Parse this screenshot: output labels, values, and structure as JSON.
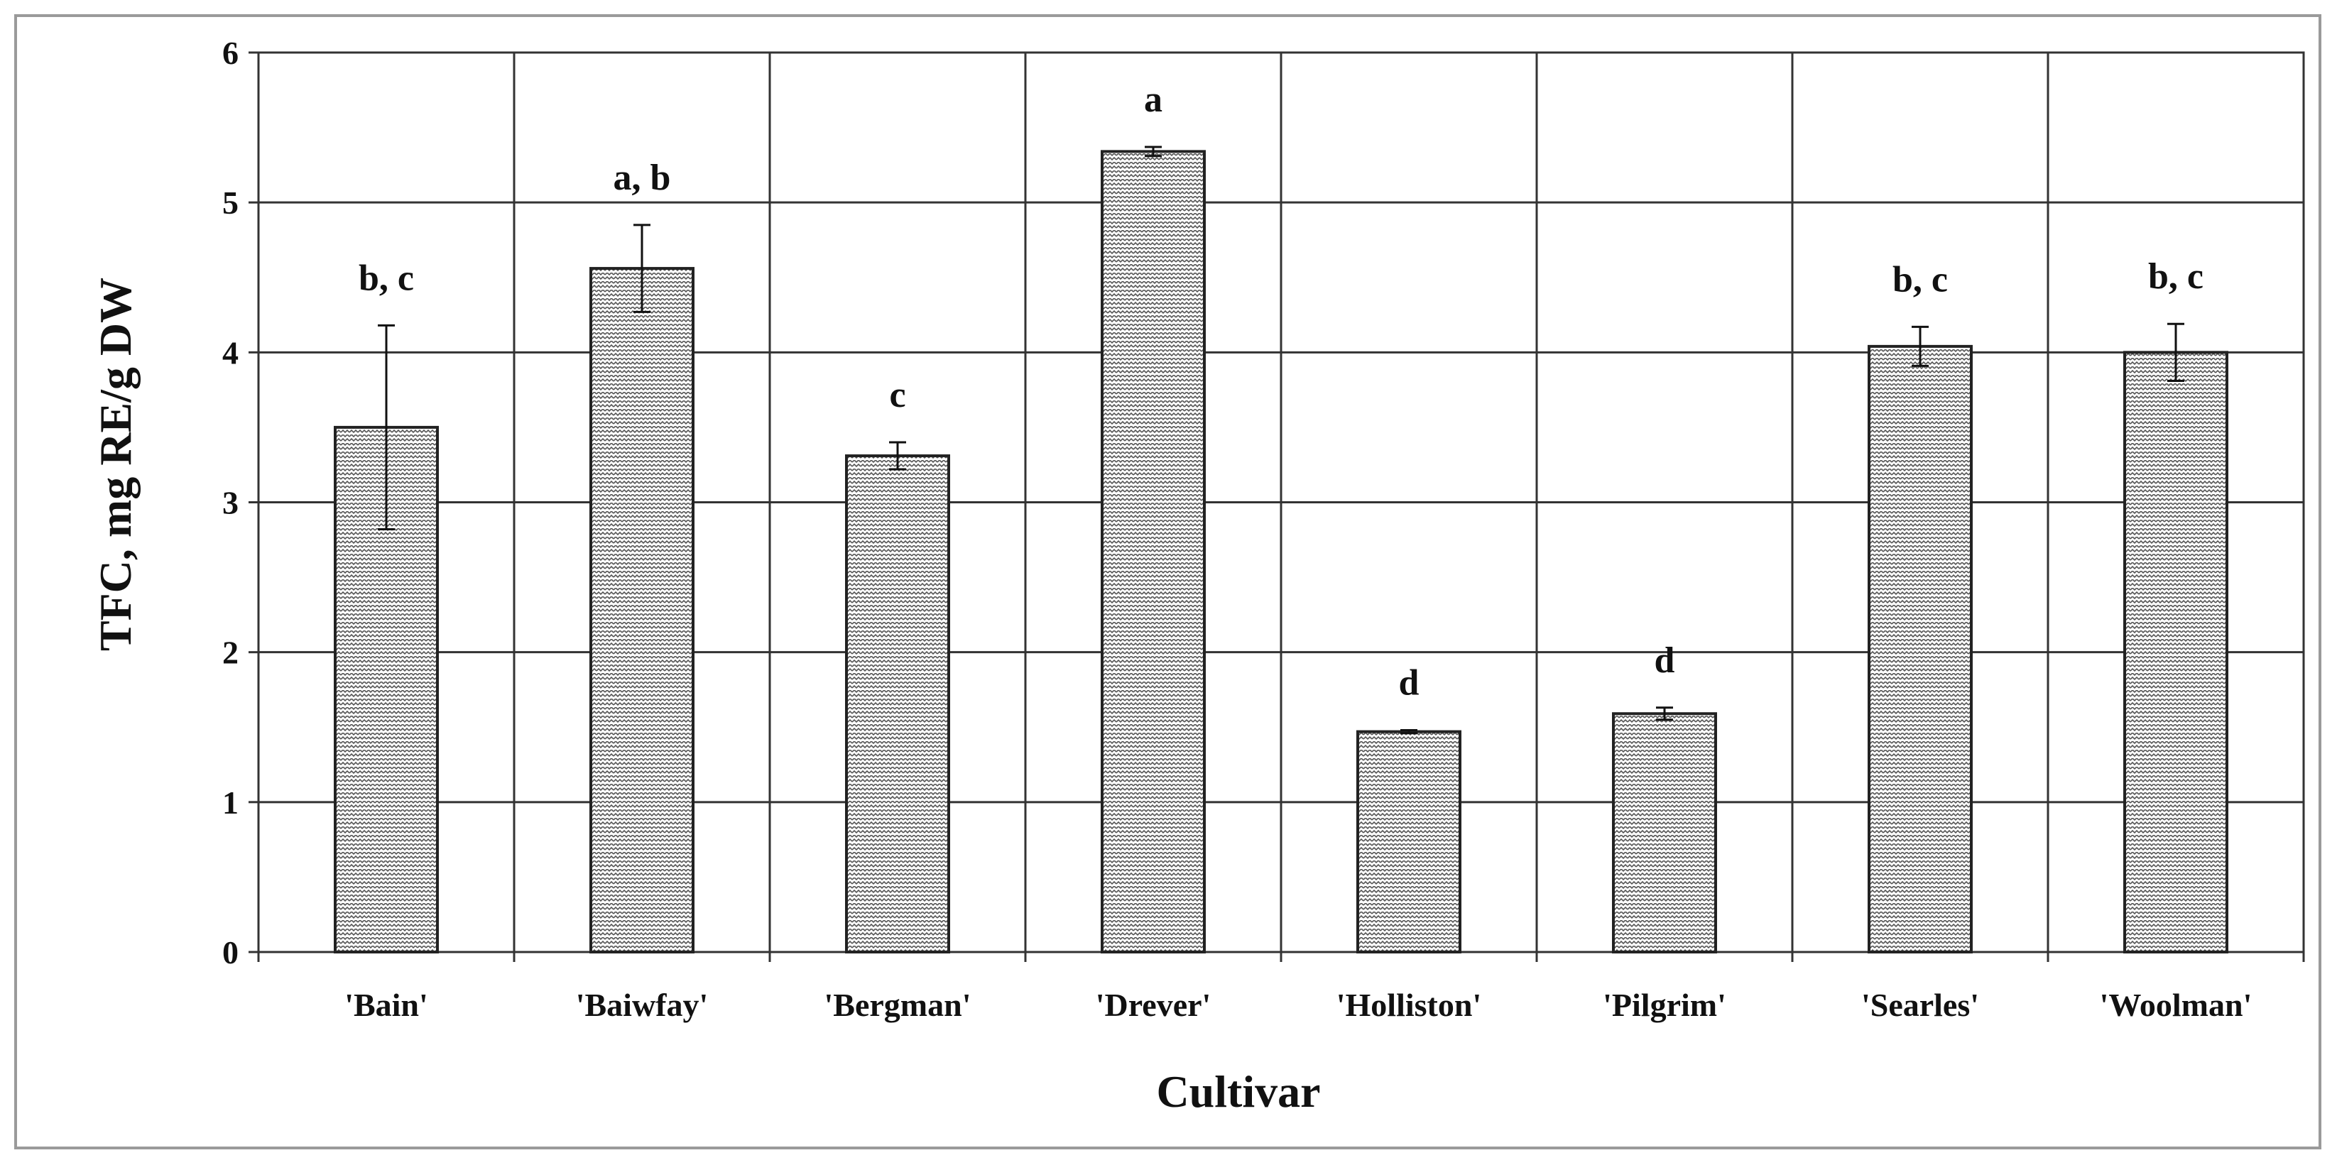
{
  "chart_data": {
    "type": "bar",
    "categories": [
      "'Bain'",
      "'Baiwfay'",
      "'Bergman'",
      "'Drever'",
      "'Holliston'",
      "'Pilgrim'",
      "'Searles'",
      "'Woolman'"
    ],
    "values": [
      3.5,
      4.56,
      3.31,
      5.34,
      1.47,
      1.59,
      4.04,
      4.0
    ],
    "errors": [
      0.68,
      0.29,
      0.09,
      0.03,
      0.01,
      0.04,
      0.13,
      0.19
    ],
    "significance_labels": [
      "b, c",
      "a, b",
      "c",
      "a",
      "d",
      "d",
      "b, c",
      "b, c"
    ],
    "xlabel": "Cultivar",
    "ylabel": "TFC, mg RE/g DW",
    "ylim": [
      0,
      6
    ],
    "yticks": [
      "0",
      "1",
      "2",
      "3",
      "4",
      "5",
      "6"
    ],
    "grid": true,
    "bar_fill": "hatched",
    "colors": {
      "bar_stroke": "#222222",
      "grid": "#333333",
      "hatch": "#555555"
    }
  }
}
